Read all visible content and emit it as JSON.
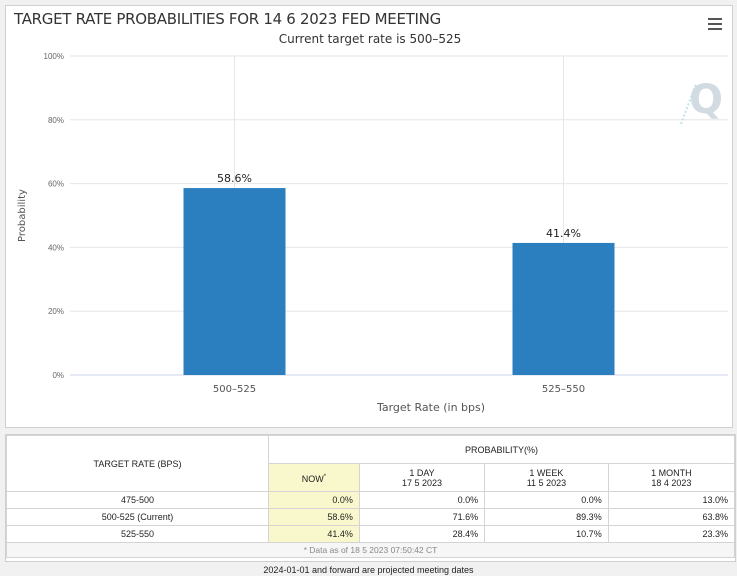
{
  "chart_data": {
    "type": "bar",
    "title": "TARGET RATE PROBABILITIES FOR 14 6 2023 FED MEETING",
    "subtitle": "Current target rate is 500–525",
    "categories": [
      "500–525",
      "525–550"
    ],
    "values": [
      58.6,
      41.4
    ],
    "data_labels": [
      "58.6%",
      "41.4%"
    ],
    "xlabel": "Target Rate (in bps)",
    "ylabel": "Probability",
    "ylim": [
      0,
      100
    ],
    "yticks": [
      0,
      20,
      40,
      60,
      80,
      100
    ],
    "ytick_labels": [
      "0%",
      "20%",
      "40%",
      "60%",
      "80%",
      "100%"
    ],
    "grid": true,
    "bar_color": "#2b7fbf"
  },
  "toolbar": {
    "menu_icon": "hamburger-menu-icon"
  },
  "table": {
    "target_header": "TARGET RATE (BPS)",
    "probability_header": "PROBABILITY(%)",
    "columns": [
      {
        "line1": "NOW",
        "sup": "*",
        "line2": ""
      },
      {
        "line1": "1 DAY",
        "line2": "17 5 2023"
      },
      {
        "line1": "1 WEEK",
        "line2": "11 5 2023"
      },
      {
        "line1": "1 MONTH",
        "line2": "18 4 2023"
      }
    ],
    "rows": [
      {
        "label": "475-500",
        "values": [
          "0.0%",
          "0.0%",
          "0.0%",
          "13.0%"
        ]
      },
      {
        "label": "500-525 (Current)",
        "values": [
          "58.6%",
          "71.6%",
          "89.3%",
          "63.8%"
        ]
      },
      {
        "label": "525-550",
        "values": [
          "41.4%",
          "28.4%",
          "10.7%",
          "23.3%"
        ]
      }
    ],
    "footnote": "* Data as of 18 5 2023 07:50:42 CT",
    "now_highlight_color": "#f8f8cc"
  },
  "bottom_note": "2024-01-01 and forward are projected meeting dates"
}
